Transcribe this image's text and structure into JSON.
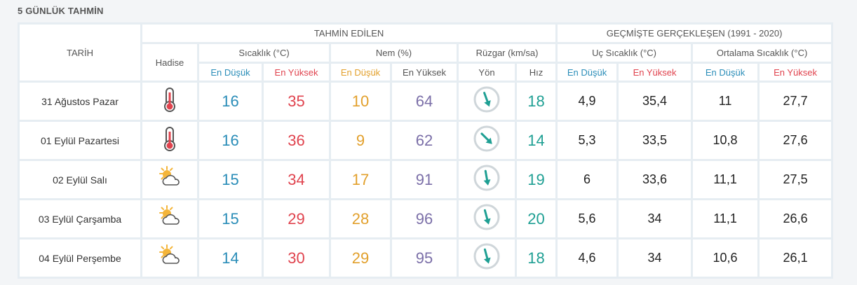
{
  "section_title": "5 GÜNLÜK TAHMİN",
  "headers": {
    "tarih": "TARİH",
    "forecast_group": "TAHMİN EDİLEN",
    "history_group": "GEÇMİŞTE GERÇEKLEŞEN (1991 - 2020)",
    "hadise": "Hadise",
    "sicaklik": "Sıcaklık (°C)",
    "nem": "Nem (%)",
    "ruzgar": "Rüzgar (km/sa)",
    "uc_sicaklik": "Uç Sıcaklık (°C)",
    "ortalama_sicaklik": "Ortalama Sıcaklık (°C)",
    "en_dusuk": "En Düşük",
    "en_yuksek": "En Yüksek",
    "yon": "Yön",
    "hiz": "Hız"
  },
  "colors": {
    "low": "#2a8db8",
    "high": "#e0434e",
    "nem_low": "#e2a02c",
    "nem_high": "#7b6fa8",
    "wind": "#1e9f93"
  },
  "rows": [
    {
      "date": "31 Ağustos Pazar",
      "icon": "thermometer-icon",
      "temp_low": "16",
      "temp_high": "35",
      "hum_low": "10",
      "hum_high": "64",
      "wind_dir_deg": 160,
      "wind_speed": "18",
      "uc_low": "4,9",
      "uc_high": "35,4",
      "ort_low": "11",
      "ort_high": "27,7"
    },
    {
      "date": "01 Eylül Pazartesi",
      "icon": "thermometer-icon",
      "temp_low": "16",
      "temp_high": "36",
      "hum_low": "9",
      "hum_high": "62",
      "wind_dir_deg": 135,
      "wind_speed": "14",
      "uc_low": "5,3",
      "uc_high": "33,5",
      "ort_low": "10,8",
      "ort_high": "27,6"
    },
    {
      "date": "02 Eylül Salı",
      "icon": "partly-cloudy-icon",
      "temp_low": "15",
      "temp_high": "34",
      "hum_low": "17",
      "hum_high": "91",
      "wind_dir_deg": 170,
      "wind_speed": "19",
      "uc_low": "6",
      "uc_high": "33,6",
      "ort_low": "11,1",
      "ort_high": "27,5"
    },
    {
      "date": "03 Eylül Çarşamba",
      "icon": "partly-cloudy-icon",
      "temp_low": "15",
      "temp_high": "29",
      "hum_low": "28",
      "hum_high": "96",
      "wind_dir_deg": 165,
      "wind_speed": "20",
      "uc_low": "5,6",
      "uc_high": "34",
      "ort_low": "11,1",
      "ort_high": "26,6"
    },
    {
      "date": "04 Eylül Perşembe",
      "icon": "partly-cloudy-icon",
      "temp_low": "14",
      "temp_high": "30",
      "hum_low": "29",
      "hum_high": "95",
      "wind_dir_deg": 165,
      "wind_speed": "18",
      "uc_low": "4,6",
      "uc_high": "34",
      "ort_low": "10,6",
      "ort_high": "26,1"
    }
  ]
}
